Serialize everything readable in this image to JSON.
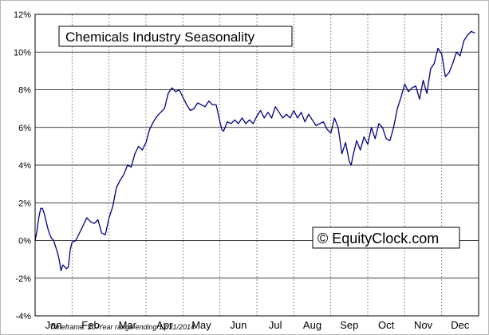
{
  "chart_data": {
    "type": "line",
    "title": "Chemicals Industry Seasonality",
    "watermark": "© EquityClock.com",
    "footnote": "Timeframe: 20-Year range ending 12/31/2014",
    "xlabel": "",
    "ylabel": "",
    "ylim": [
      -4,
      12
    ],
    "yticks": [
      -4,
      -2,
      0,
      2,
      4,
      6,
      8,
      10,
      12
    ],
    "ytick_labels": [
      "-4%",
      "-2%",
      "0%",
      "2%",
      "4%",
      "6%",
      "8%",
      "10%",
      "12%"
    ],
    "categories": [
      "Jan",
      "Feb",
      "Mar",
      "Apr",
      "May",
      "Jun",
      "Jul",
      "Aug",
      "Sep",
      "Oct",
      "Nov",
      "Dec"
    ],
    "grid": true,
    "line_color": "#000080",
    "series": [
      {
        "x": [
          0,
          0.05,
          0.1,
          0.15,
          0.2,
          0.25,
          0.3,
          0.35,
          0.4,
          0.45,
          0.5,
          0.55,
          0.6,
          0.65,
          0.7,
          0.75,
          0.8,
          0.85,
          0.9,
          0.95,
          1.0,
          1.1,
          1.2,
          1.3,
          1.4,
          1.5,
          1.6,
          1.7,
          1.8,
          1.9,
          2.0,
          2.1,
          2.2,
          2.3,
          2.4,
          2.5,
          2.6,
          2.7,
          2.8,
          2.9,
          3.0,
          3.1,
          3.2,
          3.3,
          3.4,
          3.5,
          3.6,
          3.7,
          3.8,
          3.9,
          4.0,
          4.1,
          4.2,
          4.3,
          4.4,
          4.5,
          4.6,
          4.7,
          4.8,
          4.9,
          5.0,
          5.05,
          5.1,
          5.2,
          5.3,
          5.4,
          5.5,
          5.6,
          5.7,
          5.8,
          5.9,
          6.0,
          6.1,
          6.2,
          6.3,
          6.4,
          6.5,
          6.6,
          6.7,
          6.8,
          6.9,
          7.0,
          7.1,
          7.2,
          7.3,
          7.4,
          7.5,
          7.6,
          7.7,
          7.8,
          7.9,
          8.0,
          8.1,
          8.2,
          8.3,
          8.4,
          8.5,
          8.55,
          8.6,
          8.7,
          8.8,
          8.9,
          9.0,
          9.1,
          9.2,
          9.3,
          9.4,
          9.5,
          9.6,
          9.7,
          9.8,
          9.9,
          10.0,
          10.1,
          10.2,
          10.3,
          10.4,
          10.5,
          10.6,
          10.7,
          10.8,
          10.9,
          11.0,
          11.1,
          11.2,
          11.3,
          11.4,
          11.5,
          11.6,
          11.7,
          11.8,
          11.9
        ],
        "y": [
          0.0,
          0.5,
          1.2,
          1.7,
          1.7,
          1.4,
          1.0,
          0.6,
          0.3,
          0.1,
          0.0,
          -0.3,
          -0.6,
          -1.0,
          -1.6,
          -1.3,
          -1.4,
          -1.5,
          -1.4,
          -0.5,
          -0.1,
          0.0,
          0.4,
          0.8,
          1.2,
          1.0,
          0.9,
          1.1,
          0.4,
          0.3,
          1.2,
          1.8,
          2.8,
          3.2,
          3.5,
          4.0,
          3.9,
          4.6,
          5.0,
          4.8,
          5.2,
          5.9,
          6.3,
          6.6,
          6.8,
          7.0,
          7.8,
          8.1,
          7.9,
          8.0,
          7.6,
          7.2,
          6.9,
          7.0,
          7.3,
          7.2,
          7.1,
          7.4,
          7.2,
          7.2,
          6.3,
          5.9,
          5.8,
          6.3,
          6.2,
          6.4,
          6.2,
          6.5,
          6.2,
          6.4,
          6.2,
          6.6,
          6.9,
          6.5,
          6.8,
          6.5,
          7.1,
          6.8,
          6.5,
          6.7,
          6.5,
          6.9,
          6.5,
          6.8,
          6.3,
          6.7,
          6.4,
          6.1,
          6.2,
          6.3,
          5.9,
          5.7,
          6.5,
          6.0,
          4.6,
          5.2,
          4.2,
          4.0,
          4.5,
          5.3,
          4.8,
          5.5,
          5.1,
          6.0,
          5.4,
          6.2,
          6.0,
          5.4,
          5.3,
          6.0,
          7.0,
          7.6,
          8.3,
          7.9,
          8.1,
          8.2,
          7.5,
          8.5,
          7.8,
          9.1,
          9.4,
          10.2,
          9.9,
          8.7,
          8.9,
          9.4,
          10.0,
          9.8,
          10.6,
          10.9,
          11.1,
          11.0
        ]
      }
    ]
  }
}
